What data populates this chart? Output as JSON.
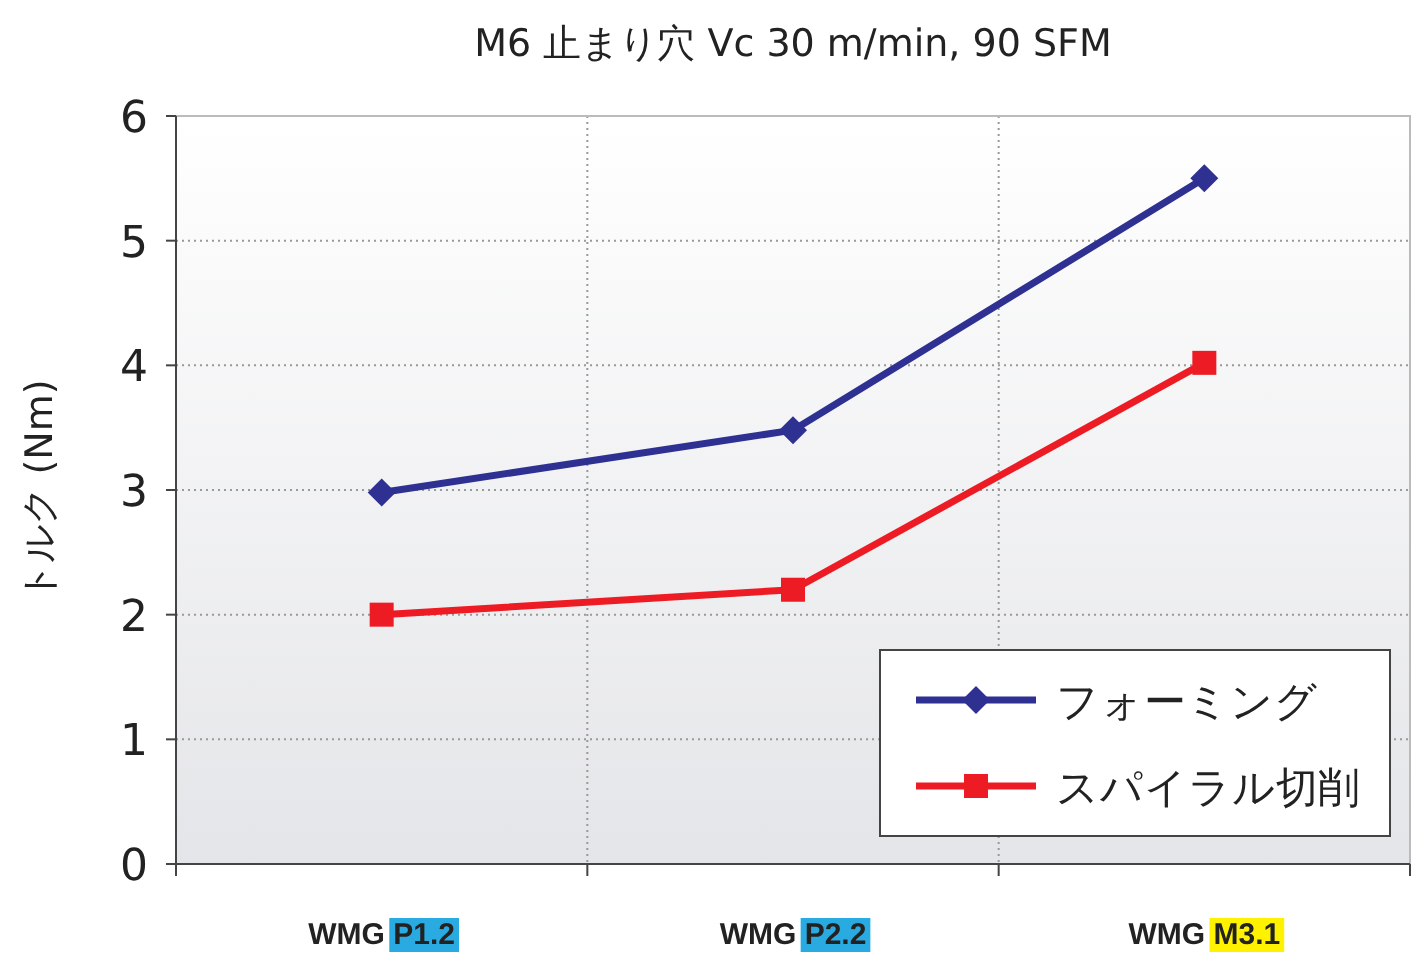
{
  "chart_data": {
    "type": "line",
    "title": "M6 止まり穴 Vc 30 m/min, 90 SFM",
    "ylabel": "トルク (Nm)",
    "categories": [
      "WMG P1.2",
      "WMG P2.2",
      "WMG M3.1"
    ],
    "series": [
      {
        "name": "フォーミング",
        "color": "#2e3192",
        "marker": "diamond",
        "values": [
          2.98,
          3.48,
          5.5
        ]
      },
      {
        "name": "スパイラル切削",
        "color": "#ed1c24",
        "marker": "square",
        "values": [
          2.0,
          2.2,
          4.02
        ]
      }
    ],
    "ylim": [
      0,
      6
    ],
    "yticks": [
      0,
      1,
      2,
      3,
      4,
      5,
      6
    ],
    "grid": true,
    "legend": "bottom right",
    "line_style": "solid"
  }
}
